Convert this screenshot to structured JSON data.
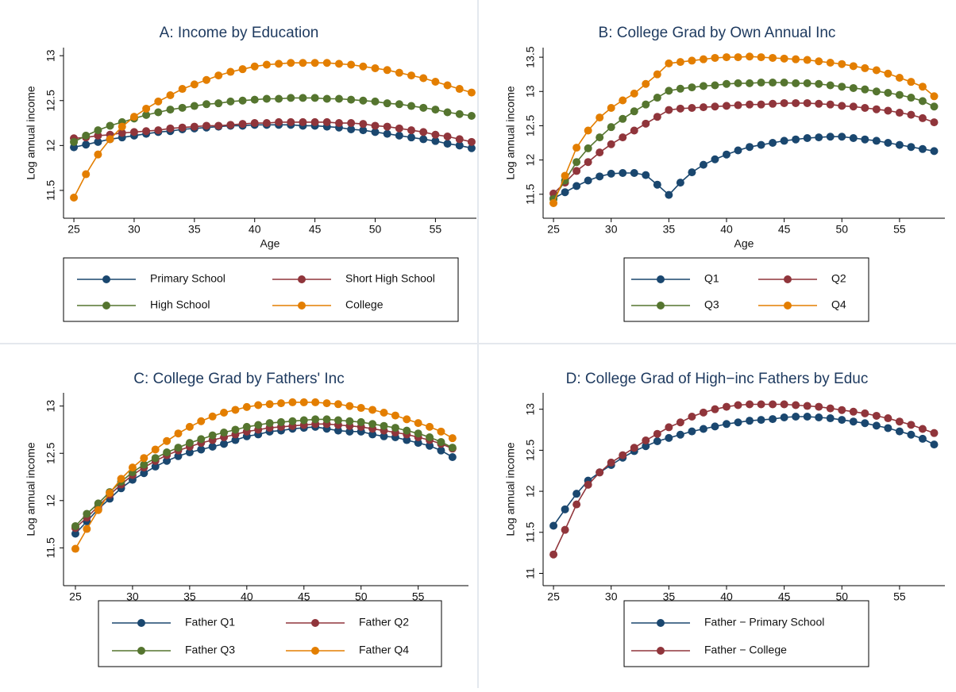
{
  "chart_data": [
    {
      "type": "line",
      "title": "A: Income by Education",
      "x_label": "Age",
      "y_label": "Log annual income",
      "x": [
        25,
        26,
        27,
        28,
        29,
        30,
        31,
        32,
        33,
        34,
        35,
        36,
        37,
        38,
        39,
        40,
        41,
        42,
        43,
        44,
        45,
        46,
        47,
        48,
        49,
        50,
        51,
        52,
        53,
        54,
        55,
        56,
        57,
        58
      ],
      "xlim": [
        24.14,
        58.4
      ],
      "ylim": [
        11.19,
        13.09
      ],
      "xticks": [
        25,
        30,
        35,
        40,
        45,
        50,
        55
      ],
      "yticks": [
        11.5,
        12,
        12.5,
        13
      ],
      "series": [
        {
          "name": "Primary School",
          "color": "#1a476f",
          "values": [
            11.98,
            12.01,
            12.04,
            12.07,
            12.09,
            12.11,
            12.13,
            12.15,
            12.16,
            12.18,
            12.19,
            12.2,
            12.21,
            12.22,
            12.22,
            12.23,
            12.23,
            12.23,
            12.23,
            12.22,
            12.22,
            12.21,
            12.2,
            12.18,
            12.17,
            12.15,
            12.13,
            12.11,
            12.09,
            12.07,
            12.05,
            12.02,
            12.0,
            11.97
          ]
        },
        {
          "name": "Short High School",
          "color": "#90353b",
          "values": [
            12.08,
            12.09,
            12.11,
            12.12,
            12.14,
            12.15,
            12.16,
            12.17,
            12.19,
            12.2,
            12.21,
            12.22,
            12.22,
            12.23,
            12.24,
            12.25,
            12.25,
            12.26,
            12.26,
            12.26,
            12.26,
            12.26,
            12.25,
            12.25,
            12.24,
            12.22,
            12.21,
            12.19,
            12.17,
            12.15,
            12.12,
            12.1,
            12.07,
            12.04
          ]
        },
        {
          "name": "High School",
          "color": "#55752f",
          "values": [
            12.04,
            12.11,
            12.17,
            12.22,
            12.26,
            12.3,
            12.34,
            12.37,
            12.4,
            12.42,
            12.44,
            12.46,
            12.47,
            12.49,
            12.5,
            12.51,
            12.52,
            12.52,
            12.53,
            12.53,
            12.53,
            12.52,
            12.52,
            12.51,
            12.5,
            12.49,
            12.47,
            12.46,
            12.44,
            12.42,
            12.4,
            12.37,
            12.35,
            12.33
          ]
        },
        {
          "name": "College",
          "color": "#e37e00",
          "values": [
            11.42,
            11.68,
            11.9,
            12.07,
            12.21,
            12.32,
            12.41,
            12.49,
            12.56,
            12.63,
            12.68,
            12.73,
            12.78,
            12.82,
            12.85,
            12.88,
            12.9,
            12.91,
            12.92,
            12.92,
            12.92,
            12.92,
            12.91,
            12.9,
            12.88,
            12.86,
            12.84,
            12.81,
            12.78,
            12.75,
            12.71,
            12.67,
            12.63,
            12.59
          ]
        }
      ]
    },
    {
      "type": "line",
      "title": "B: College Grad by Own Annual Inc",
      "x_label": "Age",
      "y_label": "Log annual income",
      "x": [
        25,
        26,
        27,
        28,
        29,
        30,
        31,
        32,
        33,
        34,
        35,
        36,
        37,
        38,
        39,
        40,
        41,
        42,
        43,
        44,
        45,
        46,
        47,
        48,
        49,
        50,
        51,
        52,
        53,
        54,
        55,
        56,
        57,
        58
      ],
      "xlim": [
        24.1,
        58.93
      ],
      "ylim": [
        11.15,
        13.64
      ],
      "xticks": [
        25,
        30,
        35,
        40,
        45,
        50,
        55
      ],
      "yticks": [
        11.5,
        12,
        12.5,
        13,
        13.5
      ],
      "series": [
        {
          "name": "Q1",
          "color": "#1a476f",
          "values": [
            11.44,
            11.53,
            11.62,
            11.7,
            11.76,
            11.8,
            11.81,
            11.81,
            11.78,
            11.64,
            11.49,
            11.67,
            11.82,
            11.93,
            12.01,
            12.08,
            12.14,
            12.19,
            12.22,
            12.25,
            12.28,
            12.3,
            12.32,
            12.33,
            12.34,
            12.34,
            12.32,
            12.3,
            12.28,
            12.25,
            12.22,
            12.19,
            12.16,
            12.13
          ]
        },
        {
          "name": "Q2",
          "color": "#90353b",
          "values": [
            11.51,
            11.67,
            11.84,
            11.97,
            12.11,
            12.23,
            12.33,
            12.43,
            12.53,
            12.63,
            12.73,
            12.75,
            12.76,
            12.77,
            12.78,
            12.79,
            12.8,
            12.81,
            12.81,
            12.82,
            12.83,
            12.83,
            12.83,
            12.82,
            12.81,
            12.79,
            12.78,
            12.76,
            12.74,
            12.72,
            12.69,
            12.66,
            12.61,
            12.55
          ]
        },
        {
          "name": "Q3",
          "color": "#55752f",
          "values": [
            11.43,
            11.7,
            11.97,
            12.17,
            12.33,
            12.48,
            12.6,
            12.71,
            12.81,
            12.91,
            13.01,
            13.04,
            13.06,
            13.08,
            13.09,
            13.11,
            13.12,
            13.12,
            13.13,
            13.13,
            13.13,
            13.12,
            13.12,
            13.11,
            13.09,
            13.07,
            13.05,
            13.03,
            13.0,
            12.98,
            12.95,
            12.91,
            12.86,
            12.78
          ]
        },
        {
          "name": "Q4",
          "color": "#e37e00",
          "values": [
            11.37,
            11.77,
            12.18,
            12.43,
            12.62,
            12.76,
            12.87,
            12.97,
            13.11,
            13.25,
            13.41,
            13.43,
            13.45,
            13.47,
            13.49,
            13.5,
            13.5,
            13.51,
            13.5,
            13.49,
            13.48,
            13.47,
            13.46,
            13.44,
            13.42,
            13.4,
            13.37,
            13.34,
            13.31,
            13.26,
            13.2,
            13.14,
            13.07,
            12.93
          ]
        }
      ]
    },
    {
      "type": "line",
      "title": "C: College Grad by Fathers' Inc",
      "x_label": "Age",
      "y_label": "Log annual income",
      "x": [
        25,
        26,
        27,
        28,
        29,
        30,
        31,
        32,
        33,
        34,
        35,
        36,
        37,
        38,
        39,
        40,
        41,
        42,
        43,
        44,
        45,
        46,
        47,
        48,
        49,
        50,
        51,
        52,
        53,
        54,
        55,
        56,
        57,
        58
      ],
      "xlim": [
        23.96,
        59.4
      ],
      "ylim": [
        11.1,
        13.14
      ],
      "xticks": [
        25,
        30,
        35,
        40,
        45,
        50,
        55
      ],
      "yticks": [
        11.5,
        12,
        12.5,
        13
      ],
      "series": [
        {
          "name": "Father Q1",
          "color": "#1a476f",
          "values": [
            11.65,
            11.78,
            11.91,
            12.02,
            12.13,
            12.22,
            12.29,
            12.36,
            12.42,
            12.47,
            12.51,
            12.54,
            12.57,
            12.6,
            12.64,
            12.68,
            12.7,
            12.73,
            12.74,
            12.76,
            12.77,
            12.78,
            12.76,
            12.74,
            12.73,
            12.73,
            12.7,
            12.68,
            12.67,
            12.64,
            12.61,
            12.58,
            12.53,
            12.46
          ]
        },
        {
          "name": "Father Q2",
          "color": "#90353b",
          "values": [
            11.71,
            11.82,
            11.94,
            12.06,
            12.17,
            12.27,
            12.35,
            12.42,
            12.48,
            12.53,
            12.57,
            12.61,
            12.64,
            12.67,
            12.7,
            12.73,
            12.75,
            12.77,
            12.78,
            12.79,
            12.8,
            12.81,
            12.81,
            12.8,
            12.79,
            12.78,
            12.76,
            12.74,
            12.72,
            12.7,
            12.67,
            12.64,
            12.6,
            12.55
          ]
        },
        {
          "name": "Father Q3",
          "color": "#55752f",
          "values": [
            11.73,
            11.86,
            11.97,
            12.09,
            12.2,
            12.3,
            12.38,
            12.45,
            12.51,
            12.56,
            12.61,
            12.65,
            12.69,
            12.72,
            12.75,
            12.78,
            12.8,
            12.82,
            12.83,
            12.84,
            12.85,
            12.86,
            12.86,
            12.85,
            12.84,
            12.83,
            12.81,
            12.79,
            12.77,
            12.74,
            12.71,
            12.67,
            12.62,
            12.56
          ]
        },
        {
          "name": "Father Q4",
          "color": "#e37e00",
          "values": [
            11.49,
            11.7,
            11.9,
            12.08,
            12.23,
            12.35,
            12.45,
            12.54,
            12.63,
            12.71,
            12.78,
            12.84,
            12.89,
            12.93,
            12.96,
            12.99,
            13.01,
            13.02,
            13.03,
            13.04,
            13.04,
            13.04,
            13.03,
            13.02,
            13.0,
            12.98,
            12.96,
            12.93,
            12.9,
            12.86,
            12.82,
            12.78,
            12.73,
            12.66
          ]
        }
      ]
    },
    {
      "type": "line",
      "title": "D: College Grad of High−inc Fathers by Educ",
      "x_label": "Age",
      "y_label": "Log annual income",
      "x": [
        25,
        26,
        27,
        28,
        29,
        30,
        31,
        32,
        33,
        34,
        35,
        36,
        37,
        38,
        39,
        40,
        41,
        42,
        43,
        44,
        45,
        46,
        47,
        48,
        49,
        50,
        51,
        52,
        53,
        54,
        55,
        56,
        57,
        58
      ],
      "xlim": [
        24.1,
        58.93
      ],
      "ylim": [
        10.85,
        13.2
      ],
      "xticks": [
        25,
        30,
        35,
        40,
        45,
        50,
        55
      ],
      "yticks": [
        11,
        11.5,
        12,
        12.5,
        13
      ],
      "series": [
        {
          "name": "Father − Primary School",
          "color": "#1a476f",
          "values": [
            11.58,
            11.78,
            11.97,
            12.13,
            12.23,
            12.32,
            12.41,
            12.49,
            12.55,
            12.61,
            12.65,
            12.69,
            12.73,
            12.76,
            12.79,
            12.82,
            12.84,
            12.86,
            12.87,
            12.88,
            12.9,
            12.91,
            12.91,
            12.9,
            12.89,
            12.87,
            12.85,
            12.83,
            12.8,
            12.77,
            12.73,
            12.69,
            12.64,
            12.57
          ]
        },
        {
          "name": "Father − College",
          "color": "#90353b",
          "values": [
            11.23,
            11.53,
            11.84,
            12.08,
            12.23,
            12.35,
            12.44,
            12.53,
            12.62,
            12.7,
            12.78,
            12.84,
            12.91,
            12.96,
            13.0,
            13.03,
            13.05,
            13.06,
            13.06,
            13.06,
            13.06,
            13.05,
            13.04,
            13.03,
            13.01,
            12.99,
            12.97,
            12.95,
            12.92,
            12.89,
            12.85,
            12.81,
            12.76,
            12.71
          ]
        }
      ]
    }
  ]
}
